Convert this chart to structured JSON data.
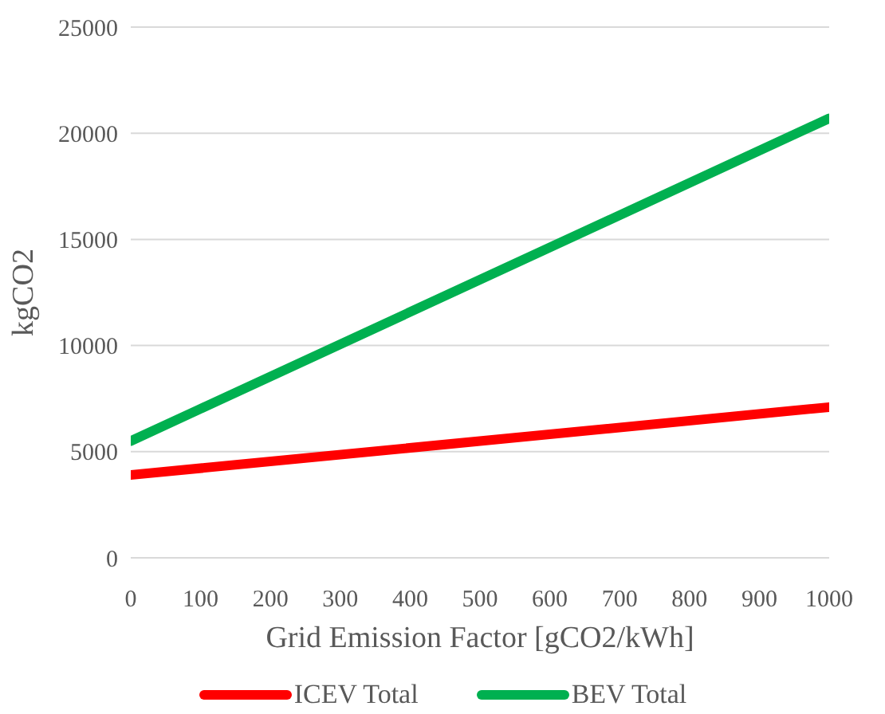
{
  "chart_data": {
    "type": "line",
    "xlabel": "Grid Emission Factor [gCO2/kWh]",
    "ylabel": "kgCO2",
    "x": [
      0,
      1000
    ],
    "series": [
      {
        "name": "ICEV Total",
        "color": "#ff0000",
        "values": [
          3900,
          7100
        ]
      },
      {
        "name": "BEV Total",
        "color": "#00b050",
        "values": [
          5500,
          20700
        ]
      }
    ],
    "xlim": [
      0,
      1000
    ],
    "xticks": [
      0,
      100,
      200,
      300,
      400,
      500,
      600,
      700,
      800,
      900,
      1000
    ],
    "ylim": [
      0,
      25000
    ],
    "yticks": [
      0,
      5000,
      10000,
      15000,
      20000,
      25000
    ],
    "grid": "y",
    "legend": "bottom",
    "marker": "none",
    "line_style": "solid"
  }
}
